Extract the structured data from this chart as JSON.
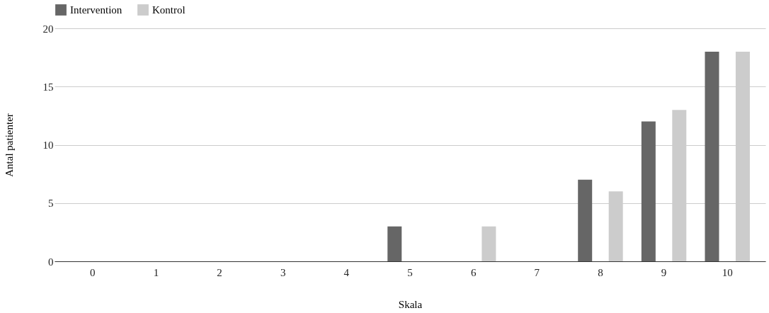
{
  "chart_data": {
    "type": "bar",
    "xlabel": "Skala",
    "ylabel": "Antal patienter",
    "categories": [
      "0",
      "1",
      "2",
      "3",
      "4",
      "5",
      "6",
      "7",
      "8",
      "9",
      "10"
    ],
    "series": [
      {
        "name": "Intervention",
        "color": "#666666",
        "values": [
          0,
          0,
          0,
          0,
          0,
          3,
          0,
          0,
          7,
          12,
          18
        ]
      },
      {
        "name": "Kontrol",
        "color": "#cccccc",
        "values": [
          0,
          0,
          0,
          0,
          0,
          0,
          3,
          0,
          6,
          13,
          18
        ]
      }
    ],
    "ylim": [
      0,
      20
    ],
    "yticks": [
      0,
      5,
      10,
      15,
      20
    ],
    "grid": "y",
    "legend": "top"
  }
}
